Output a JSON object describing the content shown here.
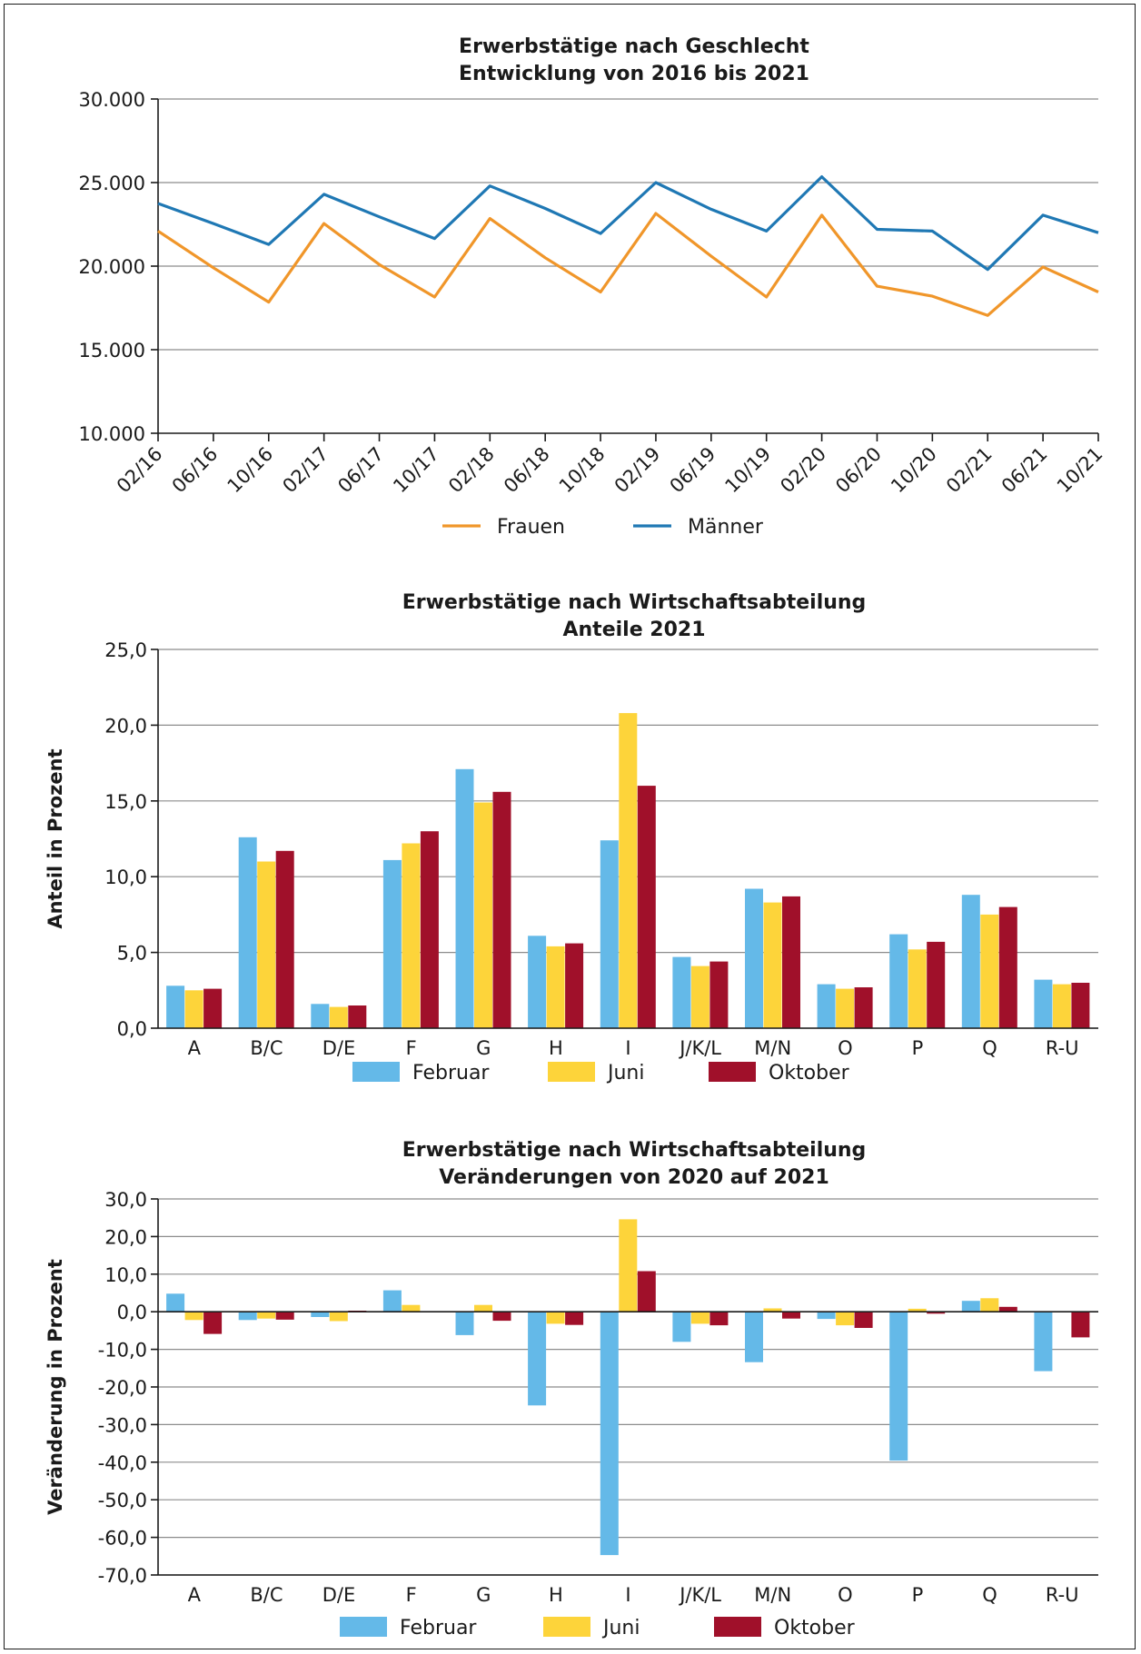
{
  "colors": {
    "frauen": "#f0962a",
    "maenner": "#1f78b4",
    "februar": "#64b9e8",
    "juni": "#fdd43a",
    "oktober": "#a0102a"
  },
  "chart_data": [
    {
      "type": "line",
      "title": "Erwerbstätige nach Geschlecht",
      "subtitle": "Entwicklung von 2016 bis 2021",
      "xlabel": "",
      "ylabel": "",
      "x": [
        "02/16",
        "06/16",
        "10/16",
        "02/17",
        "06/17",
        "10/17",
        "02/18",
        "06/18",
        "10/18",
        "02/19",
        "06/19",
        "10/19",
        "02/20",
        "06/20",
        "10/20",
        "02/21",
        "06/21",
        "10/21"
      ],
      "yticks": [
        "30.000",
        "25.000",
        "20.000",
        "15.000",
        "10.000"
      ],
      "ylim": [
        10000,
        30000
      ],
      "grid": true,
      "legend_position": "bottom",
      "series": [
        {
          "name": "Frauen",
          "color_key": "frauen",
          "values": [
            22100,
            19900,
            17850,
            22550,
            20100,
            18150,
            22850,
            20500,
            18450,
            23150,
            20600,
            18150,
            23050,
            18800,
            18200,
            17050,
            19950,
            18450
          ]
        },
        {
          "name": "Männer",
          "color_key": "maenner",
          "values": [
            23750,
            22550,
            21300,
            24300,
            22950,
            21650,
            24800,
            23450,
            21950,
            25000,
            23400,
            22100,
            25350,
            22200,
            22100,
            19800,
            23050,
            22000
          ]
        }
      ]
    },
    {
      "type": "bar",
      "title": "Erwerbstätige nach Wirtschaftsabteilung",
      "subtitle": "Anteile 2021",
      "xlabel": "",
      "ylabel": "Anteil in Prozent",
      "categories": [
        "A",
        "B/C",
        "D/E",
        "F",
        "G",
        "H",
        "I",
        "J/K/L",
        "M/N",
        "O",
        "P",
        "Q",
        "R-U"
      ],
      "yticks": [
        "25,0",
        "20,0",
        "15,0",
        "10,0",
        "5,0",
        "0,0"
      ],
      "ylim": [
        0,
        25
      ],
      "grid": true,
      "legend_position": "bottom",
      "series": [
        {
          "name": "Februar",
          "color_key": "februar",
          "values": [
            2.8,
            12.6,
            1.6,
            11.1,
            17.1,
            6.1,
            12.4,
            4.7,
            9.2,
            2.9,
            6.2,
            8.8,
            3.2
          ]
        },
        {
          "name": "Juni",
          "color_key": "juni",
          "values": [
            2.5,
            11.0,
            1.4,
            12.2,
            14.9,
            5.4,
            20.8,
            4.1,
            8.3,
            2.6,
            5.2,
            7.5,
            2.9
          ]
        },
        {
          "name": "Oktober",
          "color_key": "oktober",
          "values": [
            2.6,
            11.7,
            1.5,
            13.0,
            15.6,
            5.6,
            16.0,
            4.4,
            8.7,
            2.7,
            5.7,
            8.0,
            3.0
          ]
        }
      ]
    },
    {
      "type": "bar",
      "title": "Erwerbstätige nach Wirtschaftsabteilung",
      "subtitle": "Veränderungen von 2020 auf 2021",
      "xlabel": "",
      "ylabel": "Veränderung in Prozent",
      "categories": [
        "A",
        "B/C",
        "D/E",
        "F",
        "G",
        "H",
        "I",
        "J/K/L",
        "M/N",
        "O",
        "P",
        "Q",
        "R-U"
      ],
      "yticks": [
        "30,0",
        "20,0",
        "10,0",
        "0,0",
        "-10,0",
        "-20,0",
        "-30,0",
        "-40,0",
        "-50,0",
        "-60,0",
        "-70,0"
      ],
      "ylim": [
        -70,
        30
      ],
      "grid": true,
      "legend_position": "bottom",
      "series": [
        {
          "name": "Februar",
          "color_key": "februar",
          "values": [
            4.8,
            -2.2,
            -1.4,
            5.7,
            -6.2,
            -24.9,
            -64.7,
            -8.0,
            -13.4,
            -1.9,
            -39.6,
            2.9,
            -15.8
          ]
        },
        {
          "name": "Juni",
          "color_key": "juni",
          "values": [
            -2.2,
            -1.8,
            -2.5,
            1.8,
            1.8,
            -3.2,
            24.6,
            -3.2,
            0.9,
            -3.6,
            0.8,
            3.6,
            0.0
          ]
        },
        {
          "name": "Oktober",
          "color_key": "oktober",
          "values": [
            -5.9,
            -2.1,
            0.3,
            0.0,
            -2.4,
            -3.5,
            10.8,
            -3.6,
            -1.8,
            -4.3,
            -0.5,
            1.3,
            -6.8
          ]
        }
      ]
    }
  ]
}
